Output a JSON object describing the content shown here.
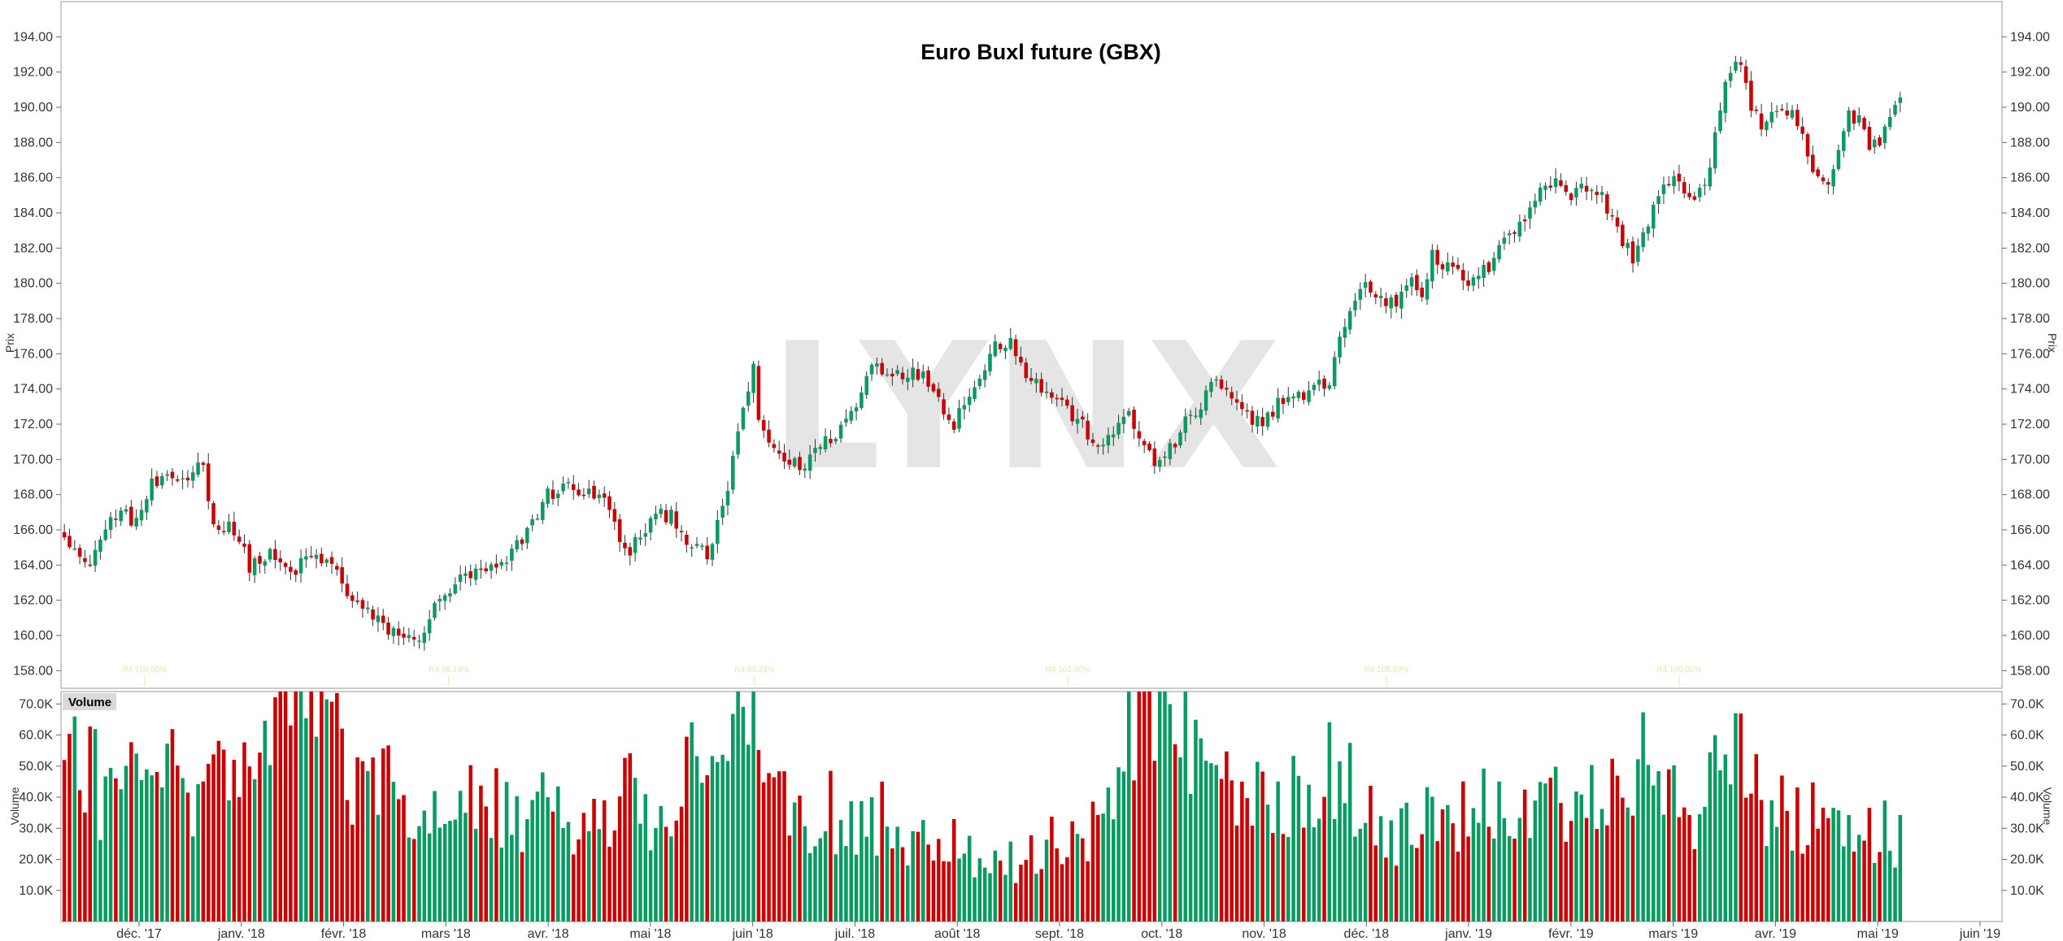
{
  "chart_data": {
    "type": "candlestick",
    "title": "Euro Buxl future (GBX)",
    "watermark": "LYNX",
    "price_axis": {
      "label": "Prix",
      "ylim": [
        157,
        196
      ],
      "ticks": [
        "158.00",
        "160.00",
        "162.00",
        "164.00",
        "166.00",
        "168.00",
        "170.00",
        "172.00",
        "174.00",
        "176.00",
        "178.00",
        "180.00",
        "182.00",
        "184.00",
        "186.00",
        "188.00",
        "190.00",
        "192.00",
        "194.00"
      ]
    },
    "volume_axis": {
      "label": "Volume",
      "panel_label": "Volume",
      "ylim": [
        0,
        74000
      ],
      "ticks": [
        "10.0K",
        "20.0K",
        "30.0K",
        "40.0K",
        "50.0K",
        "60.0K",
        "70.0K"
      ]
    },
    "x_labels": [
      "déc. '17",
      "janv. '18",
      "févr. '18",
      "mars '18",
      "avr. '18",
      "mai '18",
      "juin '18",
      "juil. '18",
      "août '18",
      "sept. '18",
      "oct. '18",
      "nov. '18",
      "déc. '18",
      "janv. '19",
      "févr. '19",
      "mars '19",
      "avr. '19",
      "mai '19",
      "juin '19"
    ],
    "colors": {
      "up": "#0a9b62",
      "down": "#cc0000",
      "wick": "#333333",
      "grid": "#cccccc"
    },
    "close_anchors": [
      [
        0,
        166.0
      ],
      [
        4,
        163.8
      ],
      [
        10,
        167.0
      ],
      [
        14,
        166.5
      ],
      [
        17,
        168.5
      ],
      [
        24,
        169.0
      ],
      [
        27,
        170.0
      ],
      [
        29,
        166.0
      ],
      [
        32,
        166.5
      ],
      [
        36,
        164.0
      ],
      [
        40,
        164.5
      ],
      [
        44,
        163.5
      ],
      [
        48,
        164.5
      ],
      [
        52,
        164.0
      ],
      [
        56,
        162.0
      ],
      [
        62,
        160.5
      ],
      [
        66,
        160.0
      ],
      [
        68,
        159.5
      ],
      [
        72,
        161.5
      ],
      [
        76,
        163.0
      ],
      [
        80,
        163.5
      ],
      [
        85,
        163.8
      ],
      [
        90,
        166.0
      ],
      [
        94,
        168.0
      ],
      [
        98,
        168.5
      ],
      [
        102,
        168.0
      ],
      [
        106,
        167.5
      ],
      [
        108,
        165.0
      ],
      [
        110,
        164.8
      ],
      [
        114,
        166.5
      ],
      [
        118,
        167.0
      ],
      [
        122,
        165.0
      ],
      [
        125,
        164.5
      ],
      [
        128,
        167.0
      ],
      [
        130,
        170.0
      ],
      [
        132,
        173.0
      ],
      [
        134,
        175.0
      ],
      [
        135,
        172.0
      ],
      [
        137,
        171.0
      ],
      [
        140,
        170.0
      ],
      [
        143,
        169.5
      ],
      [
        146,
        170.5
      ],
      [
        150,
        171.5
      ],
      [
        154,
        173.0
      ],
      [
        157,
        175.5
      ],
      [
        160,
        175.0
      ],
      [
        164,
        175.0
      ],
      [
        168,
        174.5
      ],
      [
        171,
        173.0
      ],
      [
        173,
        172.0
      ],
      [
        176,
        174.0
      ],
      [
        178,
        174.5
      ],
      [
        181,
        176.5
      ],
      [
        184,
        176.8
      ],
      [
        187,
        175.0
      ],
      [
        190,
        174.0
      ],
      [
        193,
        173.5
      ],
      [
        196,
        172.5
      ],
      [
        199,
        171.5
      ],
      [
        202,
        170.5
      ],
      [
        205,
        172.0
      ],
      [
        207,
        173.0
      ],
      [
        209,
        171.0
      ],
      [
        212,
        169.8
      ],
      [
        215,
        170.5
      ],
      [
        218,
        172.0
      ],
      [
        221,
        173.0
      ],
      [
        223,
        174.5
      ],
      [
        225,
        174.0
      ],
      [
        228,
        173.0
      ],
      [
        231,
        172.0
      ],
      [
        234,
        172.5
      ],
      [
        237,
        173.5
      ],
      [
        240,
        173.5
      ],
      [
        243,
        174.0
      ],
      [
        246,
        174.5
      ],
      [
        248,
        177.0
      ],
      [
        251,
        179.0
      ],
      [
        253,
        180.0
      ],
      [
        256,
        179.0
      ],
      [
        259,
        179.0
      ],
      [
        262,
        180.5
      ],
      [
        264,
        179.5
      ],
      [
        266,
        181.5
      ],
      [
        268,
        181.0
      ],
      [
        271,
        180.5
      ],
      [
        274,
        180.0
      ],
      [
        277,
        181.0
      ],
      [
        279,
        182.5
      ],
      [
        282,
        183.0
      ],
      [
        285,
        184.0
      ],
      [
        287,
        185.5
      ],
      [
        290,
        186.0
      ],
      [
        293,
        185.0
      ],
      [
        296,
        185.5
      ],
      [
        299,
        185.0
      ],
      [
        301,
        183.5
      ],
      [
        303,
        182.5
      ],
      [
        305,
        181.5
      ],
      [
        308,
        183.5
      ],
      [
        310,
        185.0
      ],
      [
        313,
        186.0
      ],
      [
        316,
        184.5
      ],
      [
        318,
        185.5
      ],
      [
        320,
        186.5
      ],
      [
        322,
        190.0
      ],
      [
        324,
        192.0
      ],
      [
        325,
        193.0
      ],
      [
        326,
        192.5
      ],
      [
        328,
        190.0
      ],
      [
        330,
        189.0
      ],
      [
        333,
        189.5
      ],
      [
        336,
        189.5
      ],
      [
        338,
        188.5
      ],
      [
        340,
        186.0
      ],
      [
        343,
        185.5
      ],
      [
        345,
        187.5
      ],
      [
        347,
        189.5
      ],
      [
        349,
        189.5
      ],
      [
        351,
        188.0
      ],
      [
        353,
        188.0
      ],
      [
        355,
        189.5
      ],
      [
        357,
        191.0
      ]
    ],
    "volume_profile": [
      [
        0,
        54000
      ],
      [
        10,
        45000
      ],
      [
        20,
        50000
      ],
      [
        30,
        45000
      ],
      [
        38,
        60000
      ],
      [
        44,
        74000
      ],
      [
        52,
        68000
      ],
      [
        58,
        45000
      ],
      [
        64,
        45000
      ],
      [
        70,
        38000
      ],
      [
        80,
        40000
      ],
      [
        90,
        40000
      ],
      [
        100,
        38000
      ],
      [
        110,
        42000
      ],
      [
        120,
        40000
      ],
      [
        124,
        65000
      ],
      [
        128,
        74000
      ],
      [
        132,
        74000
      ],
      [
        136,
        55000
      ],
      [
        140,
        40000
      ],
      [
        150,
        38000
      ],
      [
        160,
        35000
      ],
      [
        170,
        28000
      ],
      [
        180,
        22000
      ],
      [
        186,
        20000
      ],
      [
        192,
        30000
      ],
      [
        198,
        33000
      ],
      [
        204,
        35000
      ],
      [
        208,
        74000
      ],
      [
        212,
        74000
      ],
      [
        216,
        74000
      ],
      [
        220,
        55000
      ],
      [
        226,
        45000
      ],
      [
        232,
        40000
      ],
      [
        240,
        45000
      ],
      [
        246,
        52000
      ],
      [
        252,
        45000
      ],
      [
        258,
        32000
      ],
      [
        266,
        35000
      ],
      [
        276,
        38000
      ],
      [
        286,
        40000
      ],
      [
        292,
        40000
      ],
      [
        300,
        42000
      ],
      [
        306,
        55000
      ],
      [
        312,
        38000
      ],
      [
        318,
        42000
      ],
      [
        324,
        60000
      ],
      [
        330,
        45000
      ],
      [
        336,
        38000
      ],
      [
        344,
        32000
      ],
      [
        350,
        35000
      ],
      [
        356,
        30000
      ]
    ],
    "n_bars": 358,
    "annotations": [
      "R4 100.00%",
      "R4 98.14%",
      "R4 99.23%",
      "R4 101.00%",
      "R4 108.89%",
      "R4 100.00%"
    ]
  }
}
